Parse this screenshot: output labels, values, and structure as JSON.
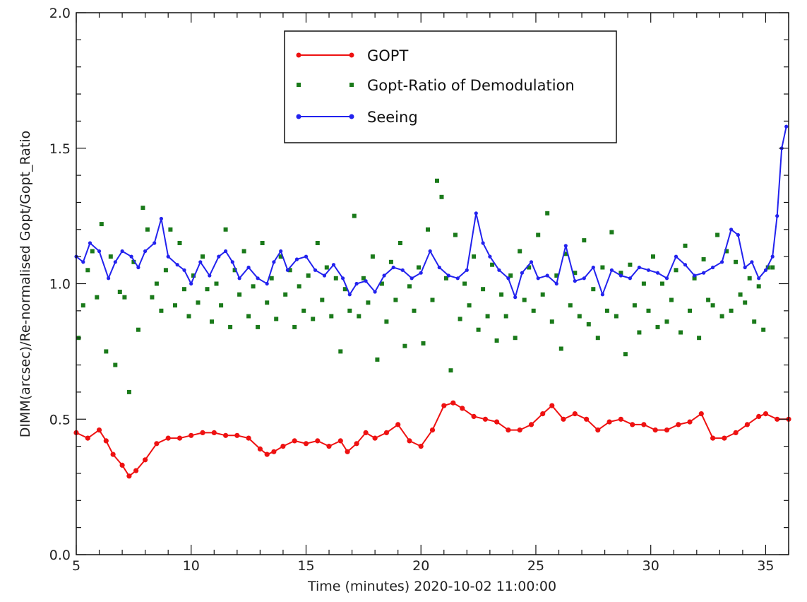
{
  "chart_data": {
    "type": "line",
    "title": "",
    "xlabel": "Time (minutes) 2020-10-02 11:00:00",
    "ylabel": "DIMM(arcsec)/Re-normalised Gopt/Gopt_Ratio",
    "xlim": [
      5,
      36
    ],
    "ylim": [
      0.0,
      2.0
    ],
    "xticks": [
      5,
      10,
      15,
      20,
      25,
      30,
      35
    ],
    "xtick_labels": [
      "5",
      "10",
      "15",
      "20",
      "25",
      "30",
      "35"
    ],
    "yticks": [
      0.0,
      0.5,
      1.0,
      1.5,
      2.0
    ],
    "ytick_labels": [
      "0.0",
      "0.5",
      "1.0",
      "1.5",
      "2.0"
    ],
    "legend": {
      "placement": "top-center",
      "entries": [
        "GOPT",
        "Gopt-Ratio of Demodulation",
        "Seeing"
      ]
    },
    "series": [
      {
        "name": "GOPT",
        "style": "line-markers",
        "color": "#ee1111",
        "x": [
          5.0,
          5.5,
          6.0,
          6.3,
          6.6,
          7.0,
          7.3,
          7.6,
          8.0,
          8.5,
          9.0,
          9.5,
          10.0,
          10.5,
          11.0,
          11.5,
          12.0,
          12.5,
          13.0,
          13.3,
          13.6,
          14.0,
          14.5,
          15.0,
          15.5,
          16.0,
          16.5,
          16.8,
          17.2,
          17.6,
          18.0,
          18.5,
          19.0,
          19.5,
          20.0,
          20.5,
          21.0,
          21.4,
          21.8,
          22.3,
          22.8,
          23.3,
          23.8,
          24.3,
          24.8,
          25.3,
          25.7,
          26.2,
          26.7,
          27.2,
          27.7,
          28.2,
          28.7,
          29.2,
          29.7,
          30.2,
          30.7,
          31.2,
          31.7,
          32.2,
          32.7,
          33.2,
          33.7,
          34.2,
          34.7,
          35.0,
          35.5,
          36.0
        ],
        "values": [
          0.45,
          0.43,
          0.46,
          0.42,
          0.37,
          0.33,
          0.29,
          0.31,
          0.35,
          0.41,
          0.43,
          0.43,
          0.44,
          0.45,
          0.45,
          0.44,
          0.44,
          0.43,
          0.39,
          0.37,
          0.38,
          0.4,
          0.42,
          0.41,
          0.42,
          0.4,
          0.42,
          0.38,
          0.41,
          0.45,
          0.43,
          0.45,
          0.48,
          0.42,
          0.4,
          0.46,
          0.55,
          0.56,
          0.54,
          0.51,
          0.5,
          0.49,
          0.46,
          0.46,
          0.48,
          0.52,
          0.55,
          0.5,
          0.52,
          0.5,
          0.46,
          0.49,
          0.5,
          0.48,
          0.48,
          0.46,
          0.46,
          0.48,
          0.49,
          0.52,
          0.43,
          0.43,
          0.45,
          0.48,
          0.51,
          0.52,
          0.5,
          0.5
        ]
      },
      {
        "name": "Gopt-Ratio of Demodulation",
        "style": "markers",
        "color": "#1a7a1a",
        "x": [
          5.1,
          5.3,
          5.5,
          5.7,
          5.9,
          6.1,
          6.3,
          6.5,
          6.7,
          6.9,
          7.1,
          7.3,
          7.5,
          7.7,
          7.9,
          8.1,
          8.3,
          8.5,
          8.7,
          8.9,
          9.1,
          9.3,
          9.5,
          9.7,
          9.9,
          10.1,
          10.3,
          10.5,
          10.7,
          10.9,
          11.1,
          11.3,
          11.5,
          11.7,
          11.9,
          12.1,
          12.3,
          12.5,
          12.7,
          12.9,
          13.1,
          13.3,
          13.5,
          13.7,
          13.9,
          14.1,
          14.3,
          14.5,
          14.7,
          14.9,
          15.1,
          15.3,
          15.5,
          15.7,
          15.9,
          16.1,
          16.3,
          16.5,
          16.7,
          16.9,
          17.1,
          17.3,
          17.5,
          17.7,
          17.9,
          18.1,
          18.3,
          18.5,
          18.7,
          18.9,
          19.1,
          19.3,
          19.5,
          19.7,
          19.9,
          20.1,
          20.3,
          20.5,
          20.7,
          20.9,
          21.1,
          21.3,
          21.5,
          21.7,
          21.9,
          22.1,
          22.3,
          22.5,
          22.7,
          22.9,
          23.1,
          23.3,
          23.5,
          23.7,
          23.9,
          24.1,
          24.3,
          24.5,
          24.7,
          24.9,
          25.1,
          25.3,
          25.5,
          25.7,
          25.9,
          26.1,
          26.3,
          26.5,
          26.7,
          26.9,
          27.1,
          27.3,
          27.5,
          27.7,
          27.9,
          28.1,
          28.3,
          28.5,
          28.7,
          28.9,
          29.1,
          29.3,
          29.5,
          29.7,
          29.9,
          30.1,
          30.3,
          30.5,
          30.7,
          30.9,
          31.1,
          31.3,
          31.5,
          31.7,
          31.9,
          32.1,
          32.3,
          32.5,
          32.7,
          32.9,
          33.1,
          33.3,
          33.5,
          33.7,
          33.9,
          34.1,
          34.3,
          34.5,
          34.7,
          34.9,
          35.1,
          35.3
        ],
        "values": [
          0.8,
          0.92,
          1.05,
          1.12,
          0.95,
          1.22,
          0.75,
          1.1,
          0.7,
          0.97,
          0.95,
          0.6,
          1.08,
          0.83,
          1.28,
          1.2,
          0.95,
          1.0,
          0.9,
          1.05,
          1.2,
          0.92,
          1.15,
          0.98,
          0.88,
          1.03,
          0.93,
          1.1,
          0.98,
          0.86,
          1.0,
          0.92,
          1.2,
          0.84,
          1.05,
          0.96,
          1.12,
          0.88,
          0.99,
          0.84,
          1.15,
          0.93,
          1.02,
          0.87,
          1.1,
          0.96,
          1.05,
          0.84,
          0.99,
          0.9,
          1.03,
          0.87,
          1.15,
          0.94,
          1.06,
          0.88,
          1.02,
          0.75,
          0.98,
          0.9,
          1.25,
          0.88,
          1.02,
          0.93,
          1.1,
          0.72,
          1.0,
          0.86,
          1.08,
          0.94,
          1.15,
          0.77,
          0.99,
          0.9,
          1.06,
          0.78,
          1.2,
          0.94,
          1.38,
          1.32,
          1.02,
          0.68,
          1.18,
          0.87,
          1.0,
          0.92,
          1.1,
          0.83,
          0.98,
          0.88,
          1.07,
          0.79,
          0.96,
          0.88,
          1.03,
          0.8,
          1.12,
          0.94,
          1.06,
          0.9,
          1.18,
          0.96,
          1.26,
          0.86,
          1.03,
          0.76,
          1.11,
          0.92,
          1.04,
          0.88,
          1.16,
          0.85,
          0.98,
          0.8,
          1.06,
          0.9,
          1.19,
          0.88,
          1.04,
          0.74,
          1.07,
          0.92,
          0.82,
          1.0,
          0.9,
          1.1,
          0.84,
          1.0,
          0.86,
          0.94,
          1.05,
          0.82,
          1.14,
          0.9,
          1.02,
          0.8,
          1.09,
          0.94,
          0.92,
          1.18,
          0.88,
          1.12,
          0.9,
          1.08,
          0.96,
          0.93,
          1.02,
          0.86,
          0.99,
          0.83,
          1.06,
          1.06
        ]
      },
      {
        "name": "Seeing",
        "style": "line-markers",
        "color": "#2222ee",
        "x": [
          5.0,
          5.3,
          5.6,
          6.0,
          6.4,
          6.7,
          7.0,
          7.4,
          7.7,
          8.0,
          8.4,
          8.7,
          9.0,
          9.4,
          9.7,
          10.0,
          10.4,
          10.8,
          11.2,
          11.5,
          11.8,
          12.1,
          12.5,
          12.9,
          13.3,
          13.6,
          13.9,
          14.2,
          14.6,
          15.0,
          15.4,
          15.8,
          16.2,
          16.6,
          16.9,
          17.2,
          17.6,
          18.0,
          18.4,
          18.8,
          19.2,
          19.6,
          20.0,
          20.4,
          20.8,
          21.2,
          21.6,
          22.0,
          22.4,
          22.7,
          23.0,
          23.4,
          23.8,
          24.1,
          24.4,
          24.8,
          25.1,
          25.5,
          25.9,
          26.3,
          26.7,
          27.1,
          27.5,
          27.9,
          28.3,
          28.7,
          29.1,
          29.5,
          29.9,
          30.3,
          30.7,
          31.1,
          31.5,
          31.9,
          32.3,
          32.7,
          33.1,
          33.5,
          33.8,
          34.1,
          34.4,
          34.7,
          35.0,
          35.3,
          35.5,
          35.7,
          35.9
        ],
        "values": [
          1.1,
          1.08,
          1.15,
          1.12,
          1.02,
          1.08,
          1.12,
          1.1,
          1.06,
          1.12,
          1.15,
          1.24,
          1.1,
          1.07,
          1.05,
          1.0,
          1.08,
          1.03,
          1.1,
          1.12,
          1.08,
          1.02,
          1.06,
          1.02,
          1.0,
          1.08,
          1.12,
          1.05,
          1.09,
          1.1,
          1.05,
          1.03,
          1.07,
          1.02,
          0.96,
          1.0,
          1.01,
          0.97,
          1.03,
          1.06,
          1.05,
          1.02,
          1.04,
          1.12,
          1.06,
          1.03,
          1.02,
          1.05,
          1.26,
          1.15,
          1.1,
          1.05,
          1.02,
          0.95,
          1.04,
          1.08,
          1.02,
          1.03,
          1.0,
          1.14,
          1.01,
          1.02,
          1.06,
          0.96,
          1.05,
          1.03,
          1.02,
          1.06,
          1.05,
          1.04,
          1.02,
          1.1,
          1.07,
          1.03,
          1.04,
          1.06,
          1.08,
          1.2,
          1.18,
          1.06,
          1.08,
          1.02,
          1.05,
          1.1,
          1.25,
          1.5,
          1.58
        ]
      }
    ]
  }
}
